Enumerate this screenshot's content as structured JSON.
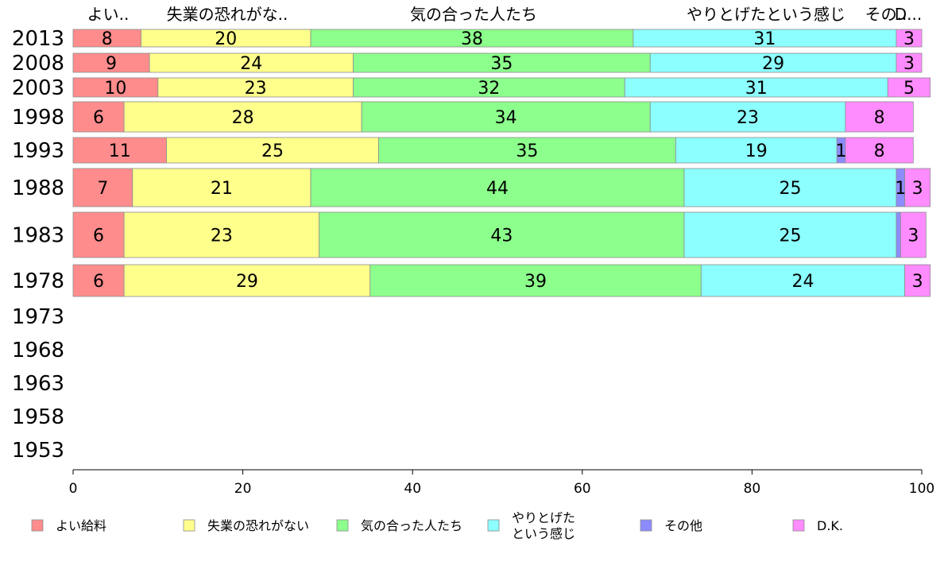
{
  "chart_data": {
    "type": "bar",
    "orientation": "horizontal",
    "stacked": true,
    "categories": [
      "2013",
      "2008",
      "2003",
      "1998",
      "1993",
      "1988",
      "1983",
      "1978",
      "1973",
      "1968",
      "1963",
      "1958",
      "1953"
    ],
    "xlim": [
      0,
      100
    ],
    "xticks": [
      "0",
      "20",
      "40",
      "60",
      "80",
      "100"
    ],
    "grid": false,
    "legend_position": "bottom",
    "top_labels": [
      "よい..",
      "失業の恐れがな..",
      "気の合った人たち",
      "やりとげたという感じ",
      "その..",
      "D..."
    ],
    "series": [
      {
        "name": "よい給料",
        "color": "#ff8c8c",
        "values": [
          8,
          9,
          10,
          6,
          11,
          7,
          6,
          6,
          null,
          null,
          null,
          null,
          null
        ],
        "labels": [
          "8",
          "9",
          "10",
          "6",
          "11",
          "7",
          "6",
          "6",
          "",
          "",
          "",
          "",
          ""
        ]
      },
      {
        "name": "失業の恐れがない",
        "color": "#ffff8c",
        "values": [
          20,
          24,
          23,
          28,
          25,
          21,
          23,
          29,
          null,
          null,
          null,
          null,
          null
        ],
        "labels": [
          "20",
          "24",
          "23",
          "28",
          "25",
          "21",
          "23",
          "29",
          "",
          "",
          "",
          "",
          ""
        ]
      },
      {
        "name": "気の合った人たち",
        "color": "#8cff8c",
        "values": [
          38,
          35,
          32,
          34,
          35,
          44,
          43,
          39,
          null,
          null,
          null,
          null,
          null
        ],
        "labels": [
          "38",
          "35",
          "32",
          "34",
          "35",
          "44",
          "43",
          "39",
          "",
          "",
          "",
          "",
          ""
        ]
      },
      {
        "name": "やりとげたという感じ",
        "legend_lines": [
          "やりとげた",
          "という感じ"
        ],
        "color": "#8cffff",
        "values": [
          31,
          29,
          31,
          23,
          19,
          25,
          25,
          24,
          null,
          null,
          null,
          null,
          null
        ],
        "labels": [
          "31",
          "29",
          "31",
          "23",
          "19",
          "25",
          "25",
          "24",
          "",
          "",
          "",
          "",
          ""
        ]
      },
      {
        "name": "その他",
        "color": "#8c8cff",
        "values": [
          0,
          0,
          0,
          0,
          1,
          1,
          0.5,
          0,
          null,
          null,
          null,
          null,
          null
        ],
        "labels": [
          "",
          "",
          "",
          "",
          "1",
          "1",
          "",
          "",
          "",
          "",
          "",
          "",
          ""
        ]
      },
      {
        "name": "D.K.",
        "color": "#ff8cff",
        "values": [
          3,
          3,
          5,
          8,
          8,
          3,
          3,
          3,
          null,
          null,
          null,
          null,
          null
        ],
        "labels": [
          "3",
          "3",
          "5",
          "8",
          "8",
          "3",
          "3",
          "3",
          "",
          "",
          "",
          "",
          ""
        ]
      }
    ]
  }
}
